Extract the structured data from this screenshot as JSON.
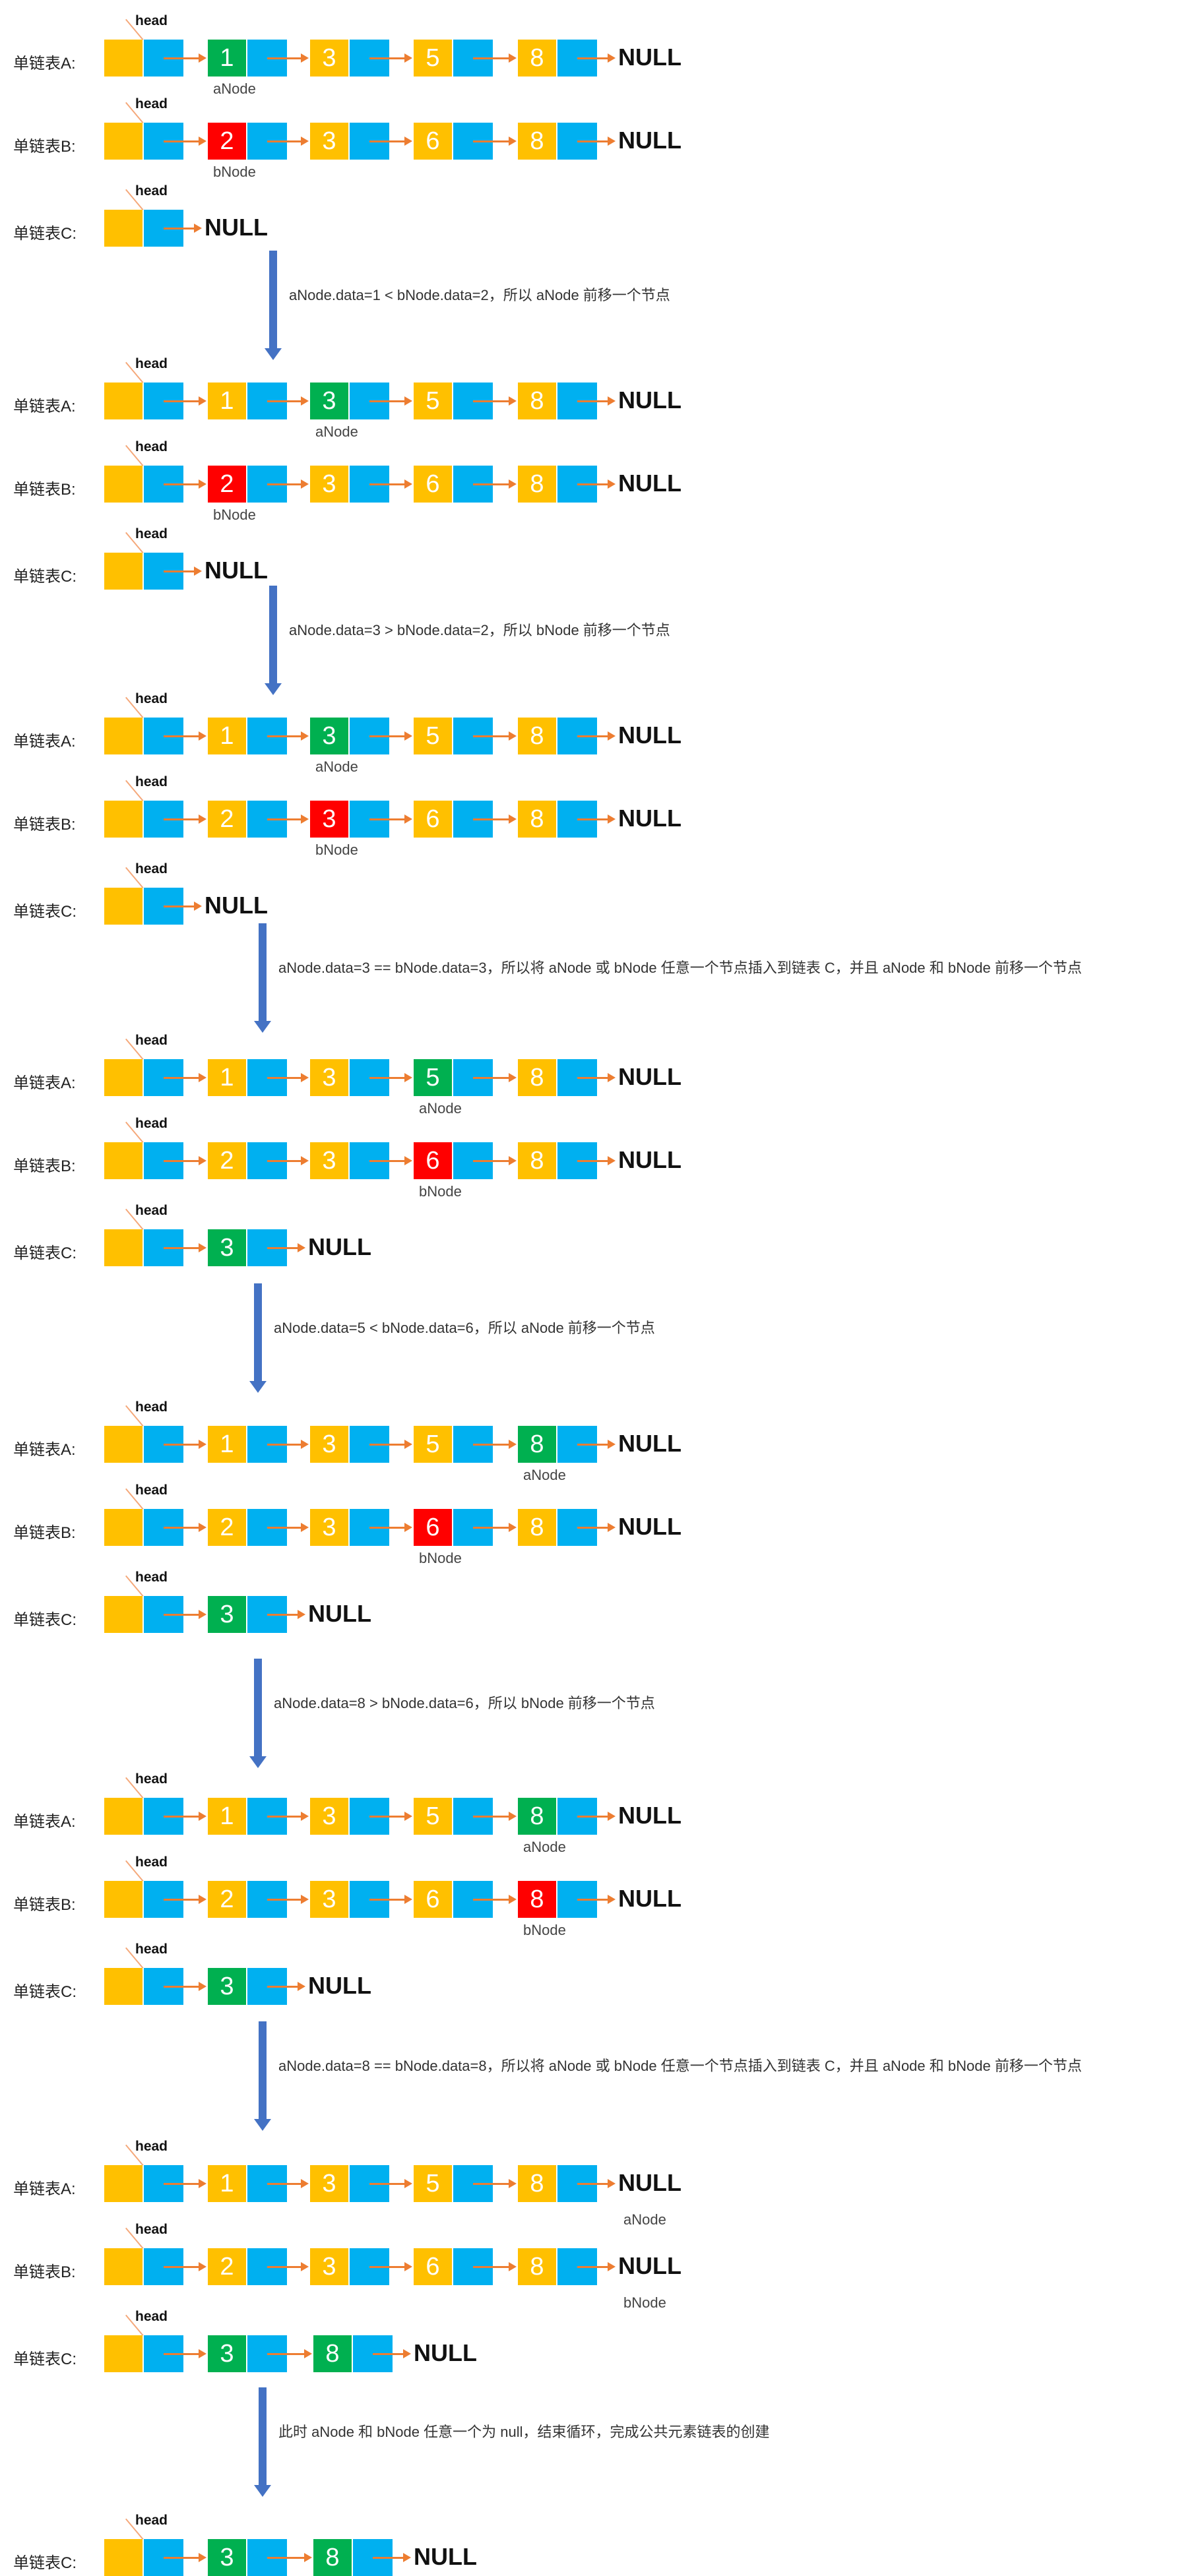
{
  "list_labels": {
    "a": "单链表A:",
    "b": "单链表B:",
    "c": "单链表C:"
  },
  "head_label": "head",
  "null_label": "NULL",
  "pointer_labels": {
    "a": "aNode",
    "b": "bNode"
  },
  "colors": {
    "data": "#ffc000",
    "next": "#00b0f0",
    "current_a": "#00b050",
    "current_b": "#ff0000",
    "link": "#ed7d31",
    "step": "#4472c4"
  },
  "steps": [
    {
      "text": "aNode.data=1 < bNode.data=2，所以 aNode 前移一个节点"
    },
    {
      "text": "aNode.data=3 > bNode.data=2，所以 bNode 前移一个节点"
    },
    {
      "text": "aNode.data=3 == bNode.data=3，所以将 aNode 或 bNode 任意一个节点插入到链表 C，并且 aNode 和 bNode 前移一个节点"
    },
    {
      "text": "aNode.data=5 < bNode.data=6，所以 aNode 前移一个节点"
    },
    {
      "text": "aNode.data=8 > bNode.data=6，所以 bNode 前移一个节点"
    },
    {
      "text": "aNode.data=8 == bNode.data=8，所以将 aNode 或 bNode 任意一个节点插入到链表 C，并且 aNode 和 bNode 前移一个节点"
    },
    {
      "text": "此时 aNode 和 bNode 任意一个为 null，结束循环，完成公共元素链表的创建"
    }
  ],
  "states": [
    {
      "a": {
        "values": [
          "1",
          "3",
          "5",
          "8"
        ],
        "ptr": 0
      },
      "b": {
        "values": [
          "2",
          "3",
          "6",
          "8"
        ],
        "ptr": 0
      },
      "c": {
        "values": []
      }
    },
    {
      "a": {
        "values": [
          "1",
          "3",
          "5",
          "8"
        ],
        "ptr": 1
      },
      "b": {
        "values": [
          "2",
          "3",
          "6",
          "8"
        ],
        "ptr": 0
      },
      "c": {
        "values": []
      }
    },
    {
      "a": {
        "values": [
          "1",
          "3",
          "5",
          "8"
        ],
        "ptr": 1
      },
      "b": {
        "values": [
          "2",
          "3",
          "6",
          "8"
        ],
        "ptr": 1
      },
      "c": {
        "values": []
      }
    },
    {
      "a": {
        "values": [
          "1",
          "3",
          "5",
          "8"
        ],
        "ptr": 2
      },
      "b": {
        "values": [
          "2",
          "3",
          "6",
          "8"
        ],
        "ptr": 2
      },
      "c": {
        "values": [
          "3"
        ]
      }
    },
    {
      "a": {
        "values": [
          "1",
          "3",
          "5",
          "8"
        ],
        "ptr": 3
      },
      "b": {
        "values": [
          "2",
          "3",
          "6",
          "8"
        ],
        "ptr": 2
      },
      "c": {
        "values": [
          "3"
        ]
      }
    },
    {
      "a": {
        "values": [
          "1",
          "3",
          "5",
          "8"
        ],
        "ptr": 3
      },
      "b": {
        "values": [
          "2",
          "3",
          "6",
          "8"
        ],
        "ptr": 3
      },
      "c": {
        "values": [
          "3"
        ]
      }
    },
    {
      "a": {
        "values": [
          "1",
          "3",
          "5",
          "8"
        ],
        "ptr": 4
      },
      "b": {
        "values": [
          "2",
          "3",
          "6",
          "8"
        ],
        "ptr": 4
      },
      "c": {
        "values": [
          "3",
          "8"
        ]
      }
    },
    {
      "c": {
        "values": [
          "3",
          "8"
        ]
      }
    }
  ]
}
